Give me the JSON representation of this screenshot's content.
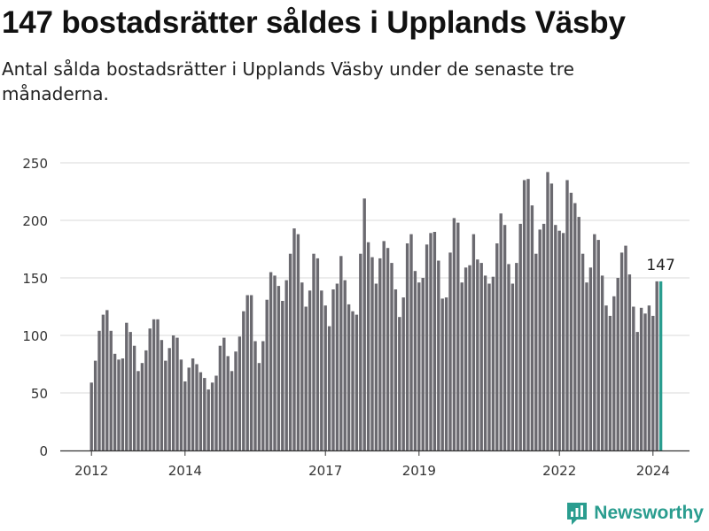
{
  "header": {
    "title": "147 bostadsrätter såldes i Upplands Väsby",
    "subtitle": "Antal sålda bostadsrätter i Upplands Väsby under de senaste tre månaderna."
  },
  "brand": {
    "name": "Newsworthy",
    "color": "#2a9d8f"
  },
  "chart_data": {
    "type": "bar",
    "title": "147 bostadsrätter såldes i Upplands Väsby",
    "subtitle": "Antal sålda bostadsrätter i Upplands Väsby under de senaste tre månaderna.",
    "xlabel": "",
    "ylabel": "",
    "ylim": [
      0,
      250
    ],
    "yticks": [
      0,
      50,
      100,
      150,
      200,
      250
    ],
    "xticks": [
      {
        "label": "2012",
        "index": 0
      },
      {
        "label": "2014",
        "index": 24
      },
      {
        "label": "2017",
        "index": 60
      },
      {
        "label": "2019",
        "index": 84
      },
      {
        "label": "2022",
        "index": 120
      },
      {
        "label": "2024",
        "index": 144
      }
    ],
    "frequency": "rolling three-month total, monthly",
    "first_period": "2012-01",
    "grid": true,
    "bar_color": "#6b6a70",
    "highlight_color": "#2a9d8f",
    "highlight_index": 146,
    "highlight_label": "147",
    "values": [
      59,
      78,
      104,
      118,
      122,
      104,
      84,
      79,
      80,
      111,
      103,
      91,
      69,
      76,
      87,
      106,
      114,
      114,
      96,
      78,
      89,
      100,
      98,
      79,
      60,
      72,
      80,
      75,
      68,
      63,
      53,
      59,
      65,
      91,
      98,
      82,
      69,
      86,
      99,
      121,
      135,
      135,
      95,
      76,
      95,
      131,
      155,
      152,
      143,
      130,
      148,
      171,
      193,
      188,
      146,
      125,
      139,
      171,
      167,
      139,
      126,
      108,
      140,
      145,
      169,
      148,
      127,
      121,
      118,
      171,
      219,
      181,
      168,
      145,
      167,
      182,
      176,
      163,
      140,
      116,
      133,
      180,
      188,
      156,
      146,
      150,
      179,
      189,
      190,
      165,
      132,
      133,
      172,
      202,
      198,
      146,
      159,
      161,
      188,
      166,
      163,
      152,
      145,
      151,
      180,
      206,
      196,
      162,
      145,
      163,
      197,
      235,
      236,
      213,
      171,
      192,
      197,
      242,
      232,
      196,
      191,
      189,
      235,
      224,
      215,
      203,
      171,
      146,
      159,
      188,
      183,
      152,
      126,
      117,
      134,
      150,
      172,
      178,
      153,
      125,
      103,
      124,
      119,
      126,
      117,
      147,
      147
    ]
  }
}
